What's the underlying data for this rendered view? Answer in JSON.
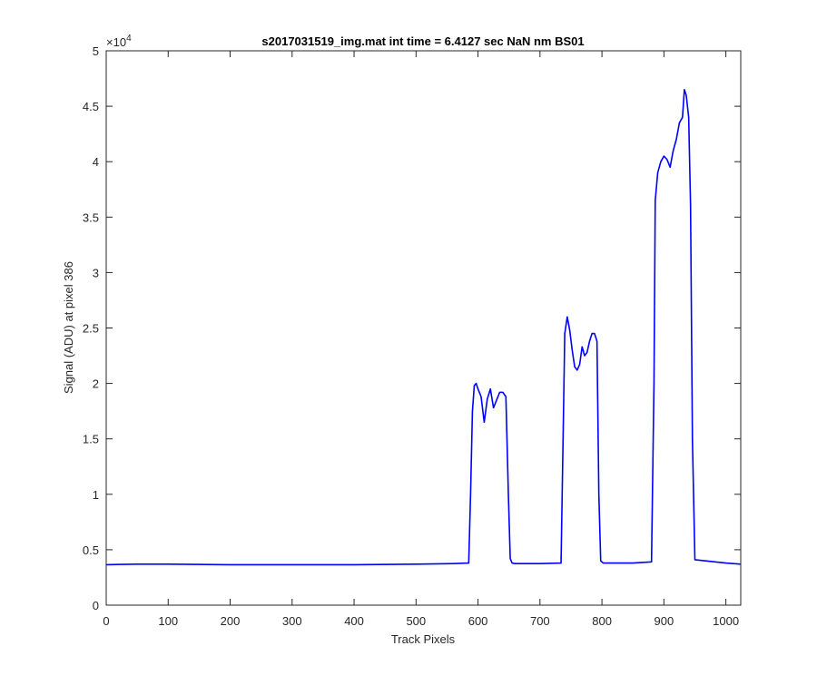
{
  "chart_data": {
    "type": "line",
    "title": "s2017031519_img.mat int time = 6.4127 sec  NaN nm BS01",
    "xlabel": "Track Pixels",
    "ylabel": "Signal (ADU) at pixel 386",
    "xlim": [
      0,
      1024
    ],
    "ylim": [
      0,
      50000
    ],
    "x_ticks": [
      0,
      100,
      200,
      300,
      400,
      500,
      600,
      700,
      800,
      900,
      1000
    ],
    "x_tick_labels": [
      "0",
      "100",
      "200",
      "300",
      "400",
      "500",
      "600",
      "700",
      "800",
      "900",
      "1000"
    ],
    "y_ticks": [
      0,
      5000,
      10000,
      15000,
      20000,
      25000,
      30000,
      35000,
      40000,
      45000,
      50000
    ],
    "y_tick_labels": [
      "0",
      "0.5",
      "1",
      "1.5",
      "2",
      "2.5",
      "3",
      "3.5",
      "4",
      "4.5",
      "5"
    ],
    "y_exponent_label": "×10",
    "y_exponent_power": "4",
    "grid": false,
    "line_color": "#0000ff",
    "series": [
      {
        "x": [
          0,
          50,
          100,
          200,
          300,
          400,
          500,
          560,
          585,
          588,
          591,
          594,
          597,
          600,
          605,
          610,
          615,
          620,
          625,
          630,
          635,
          640,
          645,
          649,
          652,
          655,
          660,
          700,
          734,
          737,
          740,
          744,
          748,
          752,
          756,
          760,
          764,
          768,
          772,
          776,
          780,
          784,
          788,
          792,
          795,
          798,
          802,
          850,
          880,
          884,
          886,
          890,
          895,
          900,
          905,
          910,
          915,
          920,
          925,
          930,
          933,
          936,
          940,
          943,
          946,
          950,
          1000,
          1024
        ],
        "y": [
          3650,
          3700,
          3700,
          3650,
          3650,
          3650,
          3700,
          3750,
          3800,
          10000,
          17500,
          19800,
          20000,
          19500,
          18800,
          16500,
          18600,
          19500,
          17800,
          18500,
          19200,
          19200,
          18800,
          10000,
          4200,
          3800,
          3750,
          3750,
          3800,
          14000,
          24500,
          26000,
          24800,
          23000,
          21500,
          21200,
          21700,
          23300,
          22500,
          22800,
          23800,
          24500,
          24500,
          23800,
          10000,
          4000,
          3800,
          3800,
          3900,
          20000,
          36500,
          39000,
          40000,
          40500,
          40200,
          39500,
          41000,
          42000,
          43500,
          44000,
          46500,
          46000,
          44000,
          36000,
          15000,
          4100,
          3800,
          3700
        ]
      }
    ]
  }
}
